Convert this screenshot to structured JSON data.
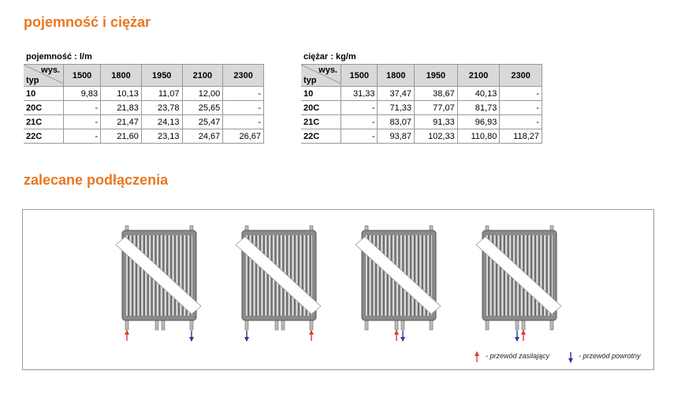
{
  "title": "pojemność i ciężar",
  "tables": [
    {
      "caption": "pojemność : l/m",
      "corner_top": "wys.",
      "corner_bottom": "typ",
      "columns": [
        "1500",
        "1800",
        "1950",
        "2100",
        "2300"
      ],
      "rows": [
        [
          "10",
          "9,83",
          "10,13",
          "11,07",
          "12,00",
          "-"
        ],
        [
          "20C",
          "-",
          "21,83",
          "23,78",
          "25,65",
          "-"
        ],
        [
          "21C",
          "-",
          "21,47",
          "24,13",
          "25,47",
          "-"
        ],
        [
          "22C",
          "-",
          "21,60",
          "23,13",
          "24,67",
          "26,67"
        ]
      ]
    },
    {
      "caption": "ciężar : kg/m",
      "corner_top": "wys.",
      "corner_bottom": "typ",
      "columns": [
        "1500",
        "1800",
        "1950",
        "2100",
        "2300"
      ],
      "rows": [
        [
          "10",
          "31,33",
          "37,47",
          "38,67",
          "40,13",
          "-"
        ],
        [
          "20C",
          "-",
          "71,33",
          "77,07",
          "81,73",
          "-"
        ],
        [
          "21C",
          "-",
          "83,07",
          "91,33",
          "96,93",
          "-"
        ],
        [
          "22C",
          "-",
          "93,87",
          "102,33",
          "110,80",
          "118,27"
        ]
      ]
    }
  ],
  "section_title": "zalecane podłączenia",
  "legend": {
    "supply": "- przewód zasilający",
    "return": "- przewód powrotny"
  }
}
